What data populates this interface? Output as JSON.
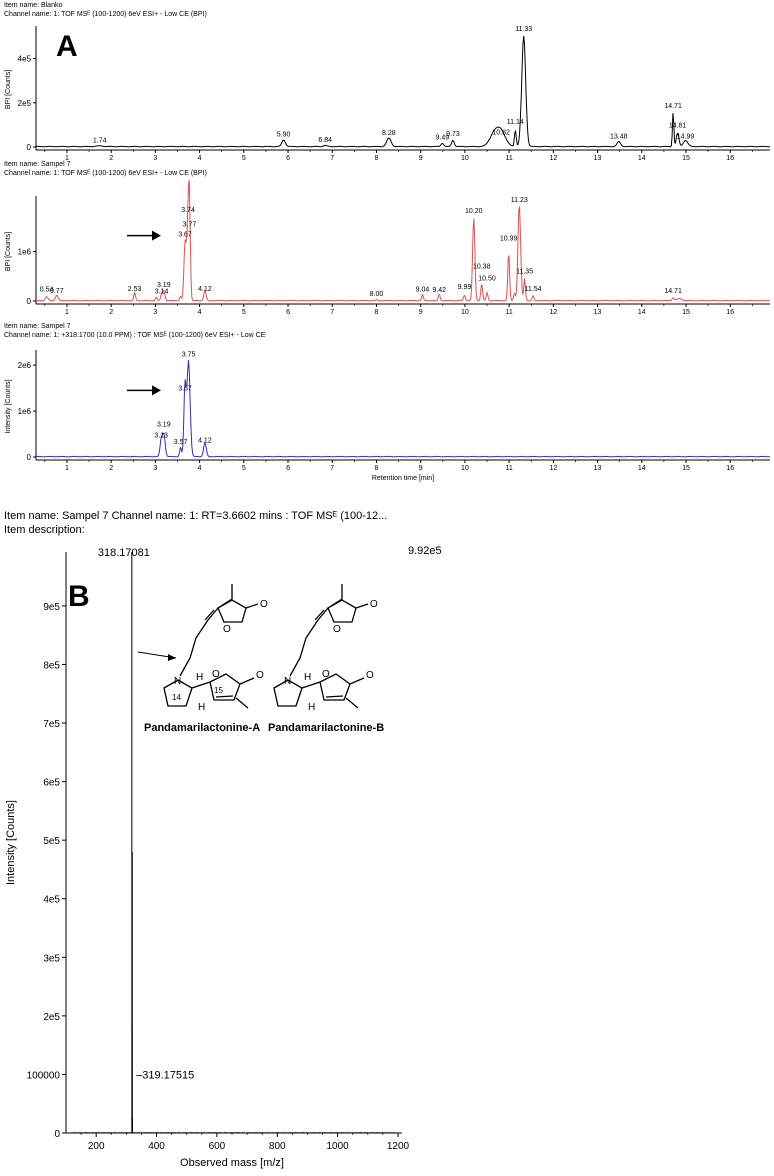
{
  "panel_a": {
    "letter": "A",
    "chromatograms": [
      {
        "item_line": "Item name: Blanko",
        "channel_line": "Channel name: 1: TOF MSᴱ (100-1200) 6eV ESI+ - Low CE (BPI)",
        "ylabel": "BPI [Counts]",
        "xlabel": "",
        "color": "#000000",
        "xlim": [
          0.3,
          16.9
        ],
        "ylim": [
          0,
          520000
        ],
        "yticks": [
          {
            "v": 0,
            "t": "0"
          },
          {
            "v": 200000,
            "t": "2e5"
          },
          {
            "v": 400000,
            "t": "4e5"
          }
        ],
        "peaks": [
          {
            "rt": 1.74,
            "h": 3000,
            "w": 0.08,
            "label": "1.74",
            "ly": 12000
          },
          {
            "rt": 5.9,
            "h": 30000,
            "w": 0.04,
            "label": "5.90",
            "ly": 38000
          },
          {
            "rt": 6.84,
            "h": 5000,
            "w": 0.04,
            "label": "6.84",
            "ly": 14000
          },
          {
            "rt": 8.28,
            "h": 38000,
            "w": 0.05,
            "label": "8.28",
            "ly": 46000
          },
          {
            "rt": 9.49,
            "h": 15000,
            "w": 0.03,
            "label": "9.49",
            "ly": 24000
          },
          {
            "rt": 9.73,
            "h": 28000,
            "w": 0.03,
            "label": "9.73",
            "ly": 40000
          },
          {
            "rt": 10.82,
            "h": 65000,
            "w": 0.1,
            "label": "10.82",
            "ly": 48000
          },
          {
            "rt": 10.66,
            "h": 55000,
            "w": 0.1,
            "label": "",
            "ly": 0
          },
          {
            "rt": 11.14,
            "h": 75000,
            "w": 0.02,
            "label": "11.14",
            "ly": 95000
          },
          {
            "rt": 11.33,
            "h": 500000,
            "w": 0.045,
            "label": "11.33",
            "ly": 515000
          },
          {
            "rt": 13.48,
            "h": 22000,
            "w": 0.04,
            "label": "13.48",
            "ly": 30000
          },
          {
            "rt": 14.71,
            "h": 160000,
            "w": 0.015,
            "label": "14.71",
            "ly": 168000
          },
          {
            "rt": 14.81,
            "h": 60000,
            "w": 0.03,
            "label": "14.81",
            "ly": 80000
          },
          {
            "rt": 14.99,
            "h": 28000,
            "w": 0.05,
            "label": "14.99",
            "ly": 30000
          }
        ]
      },
      {
        "item_line": "Item name: Sampel 7",
        "channel_line": "Channel name: 1: TOF MSᴱ (100-1200) 6eV ESI+ - Low CE (BPI)",
        "ylabel": "BPI [Counts]",
        "xlabel": "",
        "color": "#e05050",
        "xlim": [
          0.3,
          16.9
        ],
        "ylim": [
          0,
          2000000
        ],
        "yticks": [
          {
            "v": 0,
            "t": "0"
          },
          {
            "v": 1000000,
            "t": "1e6"
          }
        ],
        "peaks": [
          {
            "rt": 0.54,
            "h": 80000,
            "w": 0.03,
            "label": "0.54",
            "ly": 150000
          },
          {
            "rt": 0.77,
            "h": 110000,
            "w": 0.03,
            "label": "0.77",
            "ly": 120000
          },
          {
            "rt": 2.53,
            "h": 160000,
            "w": 0.02,
            "label": "2.53",
            "ly": 165000
          },
          {
            "rt": 3.02,
            "h": 70000,
            "w": 0.02,
            "label": "",
            "ly": 0
          },
          {
            "rt": 3.14,
            "h": 130000,
            "w": 0.02,
            "label": "3.14",
            "ly": 110000
          },
          {
            "rt": 3.19,
            "h": 200000,
            "w": 0.025,
            "label": "3.19",
            "ly": 240000
          },
          {
            "rt": 3.57,
            "h": 80000,
            "w": 0.02,
            "label": "",
            "ly": 0
          },
          {
            "rt": 3.67,
            "h": 1100000,
            "w": 0.025,
            "label": "3.67",
            "ly": 1260000
          },
          {
            "rt": 3.74,
            "h": 1600000,
            "w": 0.03,
            "label": "3.74",
            "ly": 1760000
          },
          {
            "rt": 3.77,
            "h": 1400000,
            "w": 0.02,
            "label": "3.77",
            "ly": 1460000
          },
          {
            "rt": 4.12,
            "h": 200000,
            "w": 0.025,
            "label": "4.12",
            "ly": 165000
          },
          {
            "rt": 8.0,
            "h": 15000,
            "w": 0.02,
            "label": "8.00",
            "ly": 60000
          },
          {
            "rt": 9.04,
            "h": 120000,
            "w": 0.02,
            "label": "9.04",
            "ly": 150000
          },
          {
            "rt": 9.42,
            "h": 130000,
            "w": 0.02,
            "label": "9.42",
            "ly": 145000
          },
          {
            "rt": 9.99,
            "h": 110000,
            "w": 0.02,
            "label": "9.99",
            "ly": 200000
          },
          {
            "rt": 10.2,
            "h": 1680000,
            "w": 0.025,
            "label": "10.20",
            "ly": 1740000
          },
          {
            "rt": 10.38,
            "h": 350000,
            "w": 0.02,
            "label": "10.38",
            "ly": 620000
          },
          {
            "rt": 10.5,
            "h": 160000,
            "w": 0.02,
            "label": "10.50",
            "ly": 370000
          },
          {
            "rt": 10.99,
            "h": 980000,
            "w": 0.02,
            "label": "10.99",
            "ly": 1180000
          },
          {
            "rt": 11.12,
            "h": 150000,
            "w": 0.02,
            "label": "",
            "ly": 0
          },
          {
            "rt": 11.23,
            "h": 1960000,
            "w": 0.03,
            "label": "11.23",
            "ly": 1960000
          },
          {
            "rt": 11.35,
            "h": 450000,
            "w": 0.02,
            "label": "11.35",
            "ly": 520000
          },
          {
            "rt": 11.54,
            "h": 100000,
            "w": 0.02,
            "label": "11.54",
            "ly": 160000
          },
          {
            "rt": 14.71,
            "h": 60000,
            "w": 0.02,
            "label": "14.71",
            "ly": 120000
          },
          {
            "rt": 14.85,
            "h": 40000,
            "w": 0.06,
            "label": "",
            "ly": 0
          }
        ],
        "arrow_rt": 3.67
      },
      {
        "item_line": "Item name: Sampel 7",
        "channel_line": "Channel name: 1: +318.1700 (10.0 PPM) : TOF MSᴱ (100-1200) 6eV ESI+ - Low CE",
        "ylabel": "Intensity [Counts]",
        "xlabel": "Retention time [min]",
        "color": "#3030c0",
        "xlim": [
          0.3,
          16.9
        ],
        "ylim": [
          0,
          2200000
        ],
        "yticks": [
          {
            "v": 0,
            "t": "0"
          },
          {
            "v": 1000000,
            "t": "1e6"
          },
          {
            "v": 2000000,
            "t": "2e6"
          }
        ],
        "peaks": [
          {
            "rt": 3.13,
            "h": 350000,
            "w": 0.025,
            "label": "3.13",
            "ly": 380000
          },
          {
            "rt": 3.19,
            "h": 500000,
            "w": 0.03,
            "label": "3.19",
            "ly": 620000
          },
          {
            "rt": 3.57,
            "h": 200000,
            "w": 0.02,
            "label": "3.57",
            "ly": 240000
          },
          {
            "rt": 3.67,
            "h": 1500000,
            "w": 0.025,
            "label": "3.67",
            "ly": 1400000
          },
          {
            "rt": 3.75,
            "h": 2100000,
            "w": 0.035,
            "label": "3.75",
            "ly": 2150000
          },
          {
            "rt": 4.12,
            "h": 300000,
            "w": 0.03,
            "label": "4.12",
            "ly": 270000
          }
        ],
        "arrow_rt": 3.67
      }
    ],
    "x_ticks": [
      1,
      2,
      3,
      4,
      5,
      6,
      7,
      8,
      9,
      10,
      11,
      12,
      13,
      14,
      15,
      16
    ]
  },
  "panel_b": {
    "letter": "B",
    "item_line": "Item name: Sampel 7   Channel name: 1: RT=3.6602 mins : TOF MSᴱ (100-12...",
    "desc_line": "Item description:",
    "max_label": "9.92e5",
    "chart_data": {
      "type": "bar",
      "xlabel": "Observed mass [m/z]",
      "ylabel": "Intensity [Counts]",
      "xlim": [
        100,
        1200
      ],
      "ylim": [
        0,
        992000
      ],
      "x_ticks": [
        200,
        400,
        600,
        800,
        1000,
        1200
      ],
      "y_ticks": [
        {
          "v": 0,
          "t": "0"
        },
        {
          "v": 100000,
          "t": "100000"
        },
        {
          "v": 200000,
          "t": "2e5"
        },
        {
          "v": 300000,
          "t": "3e5"
        },
        {
          "v": 400000,
          "t": "4e5"
        },
        {
          "v": 500000,
          "t": "5e5"
        },
        {
          "v": 600000,
          "t": "6e5"
        },
        {
          "v": 700000,
          "t": "7e5"
        },
        {
          "v": 800000,
          "t": "8e5"
        },
        {
          "v": 900000,
          "t": "9e5"
        }
      ],
      "peaks": [
        {
          "mz": 318.17081,
          "i": 992000,
          "label": "318.17081"
        },
        {
          "mz": 319.17515,
          "i": 180000,
          "label": "319.17515"
        },
        {
          "mz": 319.6,
          "i": 480000,
          "label": ""
        },
        {
          "mz": 320.17,
          "i": 25000,
          "label": ""
        }
      ]
    },
    "structures": {
      "label_a": "Pandamarilactonine-A",
      "label_b": "Pandamarilactonine-B",
      "atom_o": "O",
      "atom_n": "N",
      "atom_h": "H",
      "num_14": "14",
      "num_15": "15"
    }
  }
}
